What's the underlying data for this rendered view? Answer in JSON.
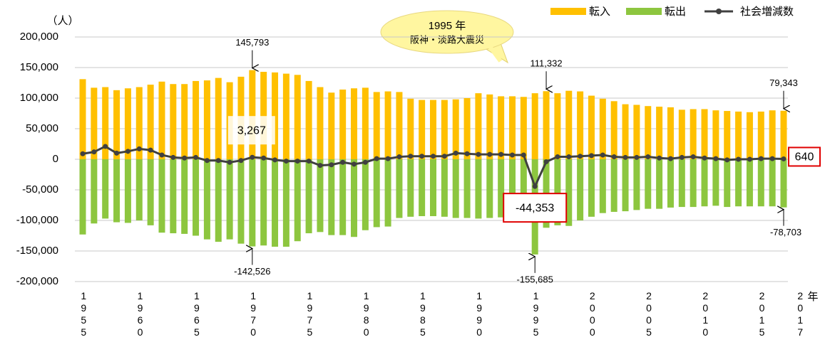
{
  "chart_data": {
    "type": "bar",
    "y_unit": "（人）",
    "x_unit": "年",
    "annotation": [
      "1995 年",
      "阪神・淡路大震災"
    ],
    "legend": "top-right",
    "grid": true,
    "categories": [
      "1955",
      null,
      null,
      null,
      null,
      "1960",
      null,
      null,
      null,
      null,
      "1965",
      null,
      null,
      null,
      null,
      "1970",
      null,
      null,
      null,
      null,
      "1975",
      null,
      null,
      null,
      null,
      "1980",
      null,
      null,
      null,
      null,
      "1985",
      null,
      null,
      null,
      null,
      "1990",
      null,
      null,
      null,
      null,
      "1995",
      null,
      null,
      null,
      null,
      "2000",
      null,
      null,
      null,
      null,
      "2005",
      null,
      null,
      null,
      null,
      "2010",
      null,
      null,
      null,
      null,
      "2015",
      null,
      "2017"
    ],
    "ylim": [
      -200000,
      200000
    ],
    "yticks": [
      {
        "value": 200000,
        "label": "200,000"
      },
      {
        "value": 150000,
        "label": "150,000"
      },
      {
        "value": 100000,
        "label": "100,000"
      },
      {
        "value": 50000,
        "label": "50,000"
      },
      0,
      {
        "value": -50000,
        "label": "-50,000"
      },
      {
        "value": -100000,
        "label": "-100,000"
      },
      {
        "value": -150000,
        "label": "-150,000"
      },
      {
        "value": -200000,
        "label": "-200,000"
      }
    ],
    "series": [
      {
        "name": "転入",
        "color": "#ffc000",
        "kind": "bar",
        "values": [
          131000,
          117000,
          118000,
          113000,
          116000,
          118000,
          122000,
          127000,
          123000,
          123000,
          128000,
          129000,
          133000,
          126000,
          135000,
          145793,
          143000,
          142000,
          140000,
          138000,
          128000,
          118000,
          109000,
          114000,
          116000,
          117000,
          110000,
          111000,
          110000,
          99000,
          97000,
          97000,
          97000,
          98000,
          100000,
          108000,
          106000,
          103000,
          103000,
          102000,
          108000,
          111332,
          108000,
          112000,
          111000,
          104000,
          99000,
          95000,
          90000,
          89000,
          87000,
          86000,
          85000,
          81000,
          82000,
          82000,
          80000,
          79000,
          78000,
          77000,
          78000,
          80000,
          79343
        ],
        "value_labels": [
          null,
          null,
          null,
          null,
          null,
          null,
          null,
          null,
          null,
          null,
          null,
          null,
          null,
          null,
          null,
          "145,793",
          null,
          null,
          null,
          null,
          null,
          null,
          null,
          null,
          null,
          null,
          null,
          null,
          null,
          null,
          null,
          null,
          null,
          null,
          null,
          null,
          null,
          null,
          null,
          null,
          null,
          "111,332",
          null,
          null,
          null,
          null,
          null,
          null,
          null,
          null,
          null,
          null,
          null,
          null,
          null,
          null,
          null,
          null,
          null,
          null,
          null,
          null,
          "79,343"
        ]
      },
      {
        "name": "転出",
        "color": "#8dc63f",
        "kind": "bar",
        "values": [
          -123000,
          -105000,
          -97000,
          -103000,
          -104000,
          -100000,
          -108000,
          -120000,
          -121000,
          -122000,
          -125000,
          -131000,
          -135000,
          -131000,
          -138000,
          -142526,
          -141000,
          -143000,
          -143000,
          -134000,
          -121000,
          -119000,
          -124000,
          -124000,
          -127000,
          -116000,
          -111000,
          -110000,
          -96000,
          -94000,
          -93000,
          -93000,
          -94000,
          -96000,
          -96000,
          -97000,
          -96000,
          -95000,
          -95000,
          -101000,
          -155685,
          -112000,
          -108000,
          -109000,
          -100000,
          -94000,
          -88000,
          -86000,
          -85000,
          -83000,
          -81000,
          -81000,
          -79000,
          -78000,
          -78000,
          -77000,
          -76000,
          -78000,
          -77000,
          -77000,
          -77000,
          -77000,
          -78703
        ],
        "value_labels": [
          null,
          null,
          null,
          null,
          null,
          null,
          null,
          null,
          null,
          null,
          null,
          null,
          null,
          null,
          null,
          "-142,526",
          null,
          null,
          null,
          null,
          null,
          null,
          null,
          null,
          null,
          null,
          null,
          null,
          null,
          null,
          null,
          null,
          null,
          null,
          null,
          null,
          null,
          null,
          null,
          null,
          "-155,685",
          null,
          null,
          null,
          null,
          null,
          null,
          null,
          null,
          null,
          null,
          null,
          null,
          null,
          null,
          null,
          null,
          null,
          null,
          null,
          null,
          null,
          "-78,703"
        ]
      },
      {
        "name": "社会増減数",
        "color": "#404040",
        "kind": "line",
        "values": [
          9000,
          12000,
          21000,
          10000,
          13000,
          17000,
          15000,
          7000,
          3000,
          2000,
          3000,
          -2000,
          -2000,
          -5000,
          -2000,
          3267,
          2000,
          -1000,
          -3000,
          -3000,
          -3000,
          -10000,
          -9000,
          -5000,
          -8000,
          -5000,
          1000,
          1000,
          4000,
          5000,
          5000,
          5000,
          5000,
          10000,
          9000,
          8000,
          8000,
          8000,
          7000,
          7000,
          -44353,
          -4000,
          4000,
          4000,
          5000,
          6000,
          7000,
          4000,
          3000,
          3000,
          4000,
          2000,
          1000,
          3000,
          4000,
          2000,
          1000,
          -1000,
          0,
          0,
          1000,
          1000,
          640
        ],
        "value_labels": [
          null,
          null,
          null,
          null,
          null,
          null,
          null,
          null,
          null,
          null,
          null,
          null,
          null,
          null,
          null,
          "3,267",
          null,
          null,
          null,
          null,
          null,
          null,
          null,
          null,
          null,
          null,
          null,
          null,
          null,
          null,
          null,
          null,
          null,
          null,
          null,
          null,
          null,
          null,
          null,
          null,
          "-44,353",
          null,
          null,
          null,
          null,
          null,
          null,
          null,
          null,
          null,
          null,
          null,
          null,
          null,
          null,
          null,
          null,
          null,
          null,
          null,
          null,
          null,
          "640"
        ]
      }
    ]
  }
}
